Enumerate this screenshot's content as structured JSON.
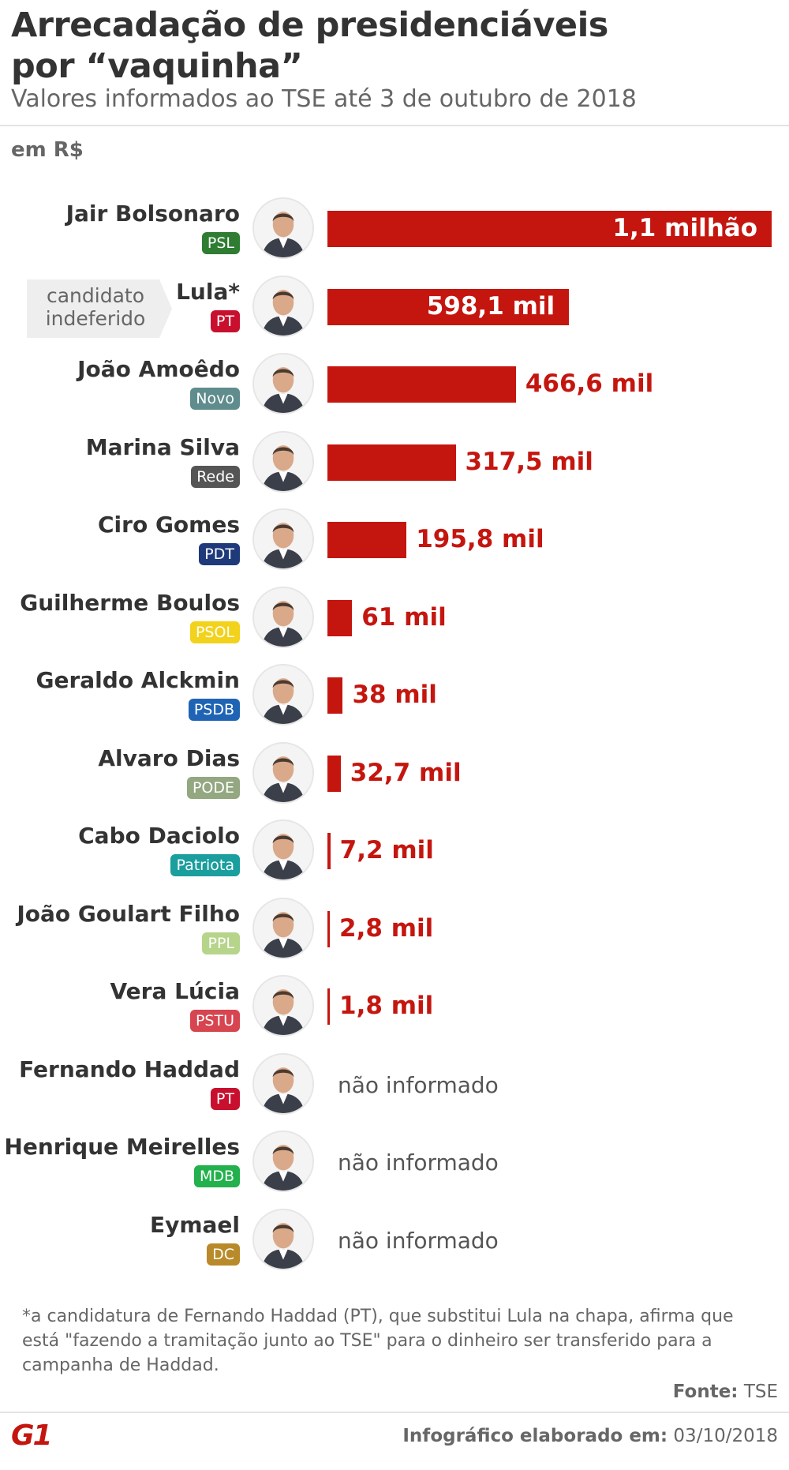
{
  "header": {
    "title_line1": "Arrecadação de presidenciáveis",
    "title_line2": "por “vaquinha”",
    "subtitle": "Valores informados ao TSE até 3 de outubro de 2018",
    "unit": "em R$"
  },
  "note": {
    "line1": "candidato",
    "line2": "indeferido"
  },
  "colors": {
    "bar": "#c4160f",
    "PSL": "#2e7d32",
    "PT": "#c8102e",
    "Novo": "#5f8c8c",
    "Rede": "#555555",
    "PDT": "#1f3a7a",
    "PSOL": "#f2d21b",
    "PSDB": "#1f64b4",
    "PODE": "#93a780",
    "Patriota": "#1a9e9e",
    "PPL": "#b6d48a",
    "PSTU": "#d64550",
    "MDB": "#22b14c",
    "DC": "#b88a2a"
  },
  "chart_data": {
    "type": "bar",
    "orientation": "horizontal",
    "unit": "R$",
    "categories": [
      "Jair Bolsonaro",
      "Lula*",
      "João Amoêdo",
      "Marina Silva",
      "Ciro Gomes",
      "Guilherme Boulos",
      "Geraldo Alckmin",
      "Alvaro Dias",
      "Cabo Daciolo",
      "João Goulart Filho",
      "Vera Lúcia",
      "Fernando Haddad",
      "Henrique Meirelles",
      "Eymael"
    ],
    "parties": [
      "PSL",
      "PT",
      "Novo",
      "Rede",
      "PDT",
      "PSOL",
      "PSDB",
      "PODE",
      "Patriota",
      "PPL",
      "PSTU",
      "PT",
      "MDB",
      "DC"
    ],
    "values": [
      1100000,
      598100,
      466600,
      317500,
      195800,
      61000,
      38000,
      32700,
      7200,
      2800,
      1800,
      null,
      null,
      null
    ],
    "labels": [
      "1,1 milhão",
      "598,1 mil",
      "466,6 mil",
      "317,5 mil",
      "195,8 mil",
      "61 mil",
      "38 mil",
      "32,7 mil",
      "7,2 mil",
      "2,8 mil",
      "1,8 mil",
      "não informado",
      "não informado",
      "não informado"
    ],
    "xlim": [
      0,
      1100000
    ]
  },
  "footer": {
    "footnote": "*a candidatura de Fernando Haddad (PT), que substitui Lula na chapa, afirma que está \"fazendo a tramitação junto ao TSE\" para o dinheiro ser transferido para a campanha de Haddad.",
    "source_label": "Fonte:",
    "source_value": "TSE",
    "credit_label": "Infográfico elaborado em:",
    "credit_date": "03/10/2018",
    "logo": "G1"
  }
}
